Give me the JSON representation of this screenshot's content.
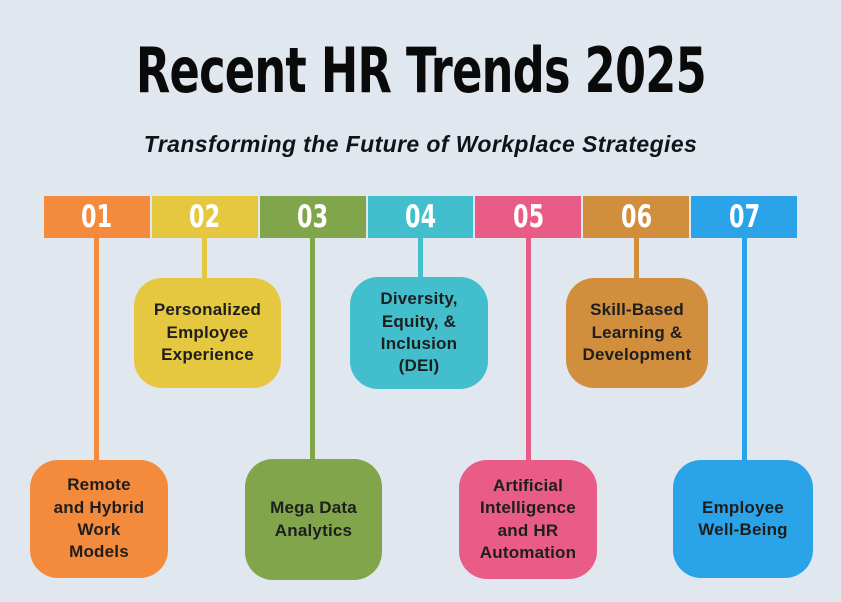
{
  "page": {
    "title": "Recent HR Trends 2025",
    "subtitle": "Transforming the Future of Workplace Strategies",
    "background_color": "#E1E7EE",
    "title_color": "#0A0A0A",
    "number_text_color": "#FFFFFF",
    "card_text_color": "#1E1E1E"
  },
  "trends": [
    {
      "number": "01",
      "label": "Remote\nand Hybrid\nWork\nModels",
      "color": "#F48A3C",
      "card_position": "bottom"
    },
    {
      "number": "02",
      "label": "Personalized\nEmployee\nExperience",
      "color": "#E6C840",
      "card_position": "top"
    },
    {
      "number": "03",
      "label": "Mega Data\nAnalytics",
      "color": "#81A54A",
      "card_position": "bottom"
    },
    {
      "number": "04",
      "label": "Diversity,\nEquity, &\nInclusion\n(DEI)",
      "color": "#42BECD",
      "card_position": "top"
    },
    {
      "number": "05",
      "label": "Artificial\nIntelligence\nand HR\nAutomation",
      "color": "#E95C87",
      "card_position": "bottom"
    },
    {
      "number": "06",
      "label": "Skill-Based\nLearning &\nDevelopment",
      "color": "#D18F3E",
      "card_position": "top"
    },
    {
      "number": "07",
      "label": "Employee\nWell-Being",
      "color": "#2BA3E8",
      "card_position": "bottom"
    }
  ]
}
